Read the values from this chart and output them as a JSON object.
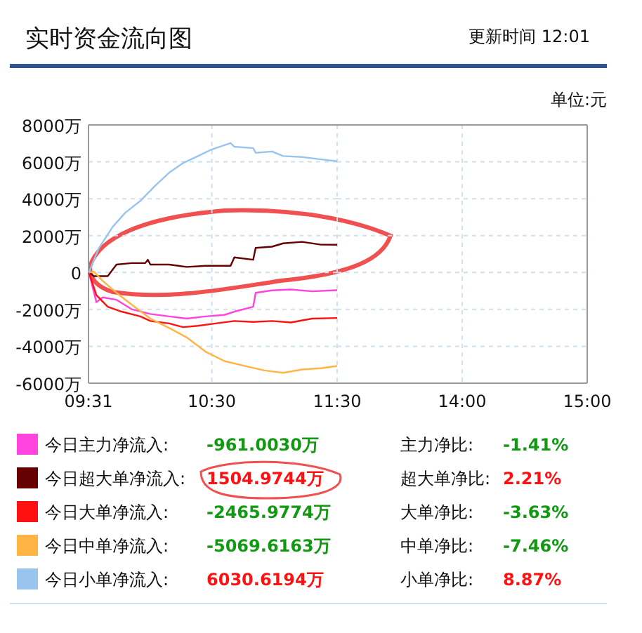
{
  "chart_data": [
    {
      "type": "line",
      "title": "实时资金流向图",
      "annotations": [
        "更新时间 12:01",
        "单位:元",
        "-961.0030万",
        "1504.9744万",
        "-2465.9774万",
        "-5069.6163万",
        "6030.6194万",
        "主力净比:",
        "超大单净比:",
        "大单净比:",
        "中单净比:",
        "小单净比:",
        "-1.41%",
        "2.21%",
        "-3.63%",
        "-7.46%",
        "8.87%"
      ],
      "xlim": [
        9.5167,
        11.5
      ],
      "xticks": [
        {
          "value": 9.5167,
          "label": "09:31"
        },
        {
          "value": 10.5,
          "label": "10:30"
        },
        {
          "value": 11.5,
          "label": "11:30"
        }
      ],
      "ylim": [
        -6000,
        8000
      ],
      "yticks": [
        {
          "value": -6000,
          "label": "-6000万"
        },
        {
          "value": -4000,
          "label": "-4000万"
        },
        {
          "value": -2000,
          "label": "-2000万"
        },
        0,
        {
          "value": 2000,
          "label": "2000万"
        },
        {
          "value": 4000,
          "label": "4000万"
        },
        {
          "value": 6000,
          "label": "6000万"
        },
        {
          "value": 8000,
          "label": "8000万"
        }
      ],
      "grid": true,
      "legend": "bottom",
      "marker": "none",
      "line_style": "solid",
      "series": [
        {
          "name": "今日主力净流入:",
          "color": "#ff44dd",
          "x": [
            9.52,
            9.58,
            9.63,
            9.74,
            9.86,
            10.01,
            10.16,
            10.3,
            10.45,
            10.6,
            10.68,
            10.83,
            10.85,
            10.98,
            11.13,
            11.3,
            11.5
          ],
          "values": [
            0,
            -1610,
            -1350,
            -1480,
            -1990,
            -2250,
            -2380,
            -2500,
            -2380,
            -2300,
            -2120,
            -1860,
            -1100,
            -970,
            -920,
            -1020,
            -961
          ]
        },
        {
          "name": "今日超大单净流入:",
          "color": "#660000",
          "x": [
            9.52,
            9.56,
            9.67,
            9.74,
            9.86,
            9.97,
            9.99,
            10.01,
            10.16,
            10.3,
            10.45,
            10.65,
            10.68,
            10.83,
            10.85,
            10.98,
            11.07,
            11.22,
            11.37,
            11.5
          ],
          "values": [
            0,
            -200,
            -200,
            430,
            510,
            510,
            690,
            430,
            430,
            300,
            360,
            360,
            820,
            690,
            1330,
            1400,
            1580,
            1660,
            1510,
            1505
          ]
        },
        {
          "name": "今日大单净流入:",
          "color": "#ff1111",
          "x": [
            9.52,
            9.58,
            9.67,
            9.78,
            9.93,
            10.01,
            10.16,
            10.27,
            10.39,
            10.53,
            10.68,
            10.83,
            10.98,
            11.13,
            11.3,
            11.5
          ],
          "values": [
            0,
            -1230,
            -1860,
            -2120,
            -2380,
            -2630,
            -2760,
            -2960,
            -2890,
            -2760,
            -2630,
            -2680,
            -2630,
            -2710,
            -2500,
            -2466
          ]
        },
        {
          "name": "今日中单净流入:",
          "color": "#ffb444",
          "x": [
            9.52,
            9.56,
            9.63,
            9.74,
            9.86,
            10.01,
            10.16,
            10.3,
            10.45,
            10.6,
            10.76,
            10.92,
            11.07,
            11.22,
            11.37,
            11.5
          ],
          "values": [
            0,
            50,
            -460,
            -1100,
            -1740,
            -2500,
            -3010,
            -3520,
            -4290,
            -4800,
            -5060,
            -5310,
            -5440,
            -5260,
            -5190,
            -5070
          ]
        },
        {
          "name": "今日小单净流入:",
          "color": "#99c4ee",
          "x": [
            9.52,
            9.6,
            9.71,
            9.81,
            9.93,
            10.04,
            10.16,
            10.27,
            10.39,
            10.49,
            10.65,
            10.68,
            10.83,
            10.85,
            10.98,
            11.07,
            11.22,
            11.37,
            11.5
          ],
          "values": [
            0,
            1330,
            2480,
            3240,
            3880,
            4650,
            5410,
            5930,
            6310,
            6640,
            7020,
            6820,
            6740,
            6490,
            6560,
            6310,
            6260,
            6130,
            6031
          ]
        }
      ]
    },
    {
      "type": "line",
      "xlim": [
        13,
        15
      ],
      "xticks": [
        {
          "value": 14,
          "label": "14:00"
        },
        {
          "value": 15,
          "label": "15:00"
        }
      ],
      "ylim": [
        -6000,
        8000
      ],
      "yticks": [
        -6000,
        -4000,
        -2000,
        0,
        2000,
        4000,
        6000,
        8000
      ],
      "tick_labels": "x",
      "grid": true
    }
  ]
}
